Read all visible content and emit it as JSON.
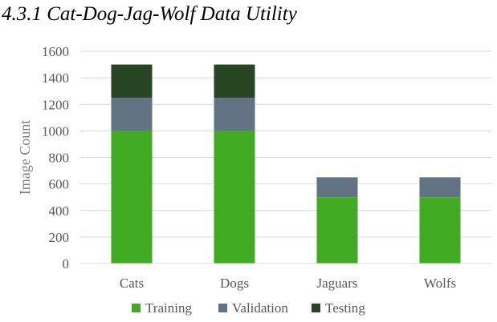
{
  "heading": "4.3.1 Cat-Dog-Jag-Wolf Data Utility",
  "chart_data": {
    "type": "bar",
    "stacked": true,
    "categories": [
      "Cats",
      "Dogs",
      "Jaguars",
      "Wolfs"
    ],
    "series": [
      {
        "name": "Training",
        "values": [
          1000,
          1000,
          500,
          500
        ],
        "color": "#3faa22"
      },
      {
        "name": "Validation",
        "values": [
          250,
          250,
          150,
          150
        ],
        "color": "#627383"
      },
      {
        "name": "Testing",
        "values": [
          250,
          250,
          0,
          0
        ],
        "color": "#274423"
      }
    ],
    "title": "",
    "xlabel": "",
    "ylabel": "Image Count",
    "ylim": [
      0,
      1600
    ],
    "yticks": [
      0,
      200,
      400,
      600,
      800,
      1000,
      1200,
      1400,
      1600
    ],
    "grid": true,
    "legend": "bottom-center"
  }
}
